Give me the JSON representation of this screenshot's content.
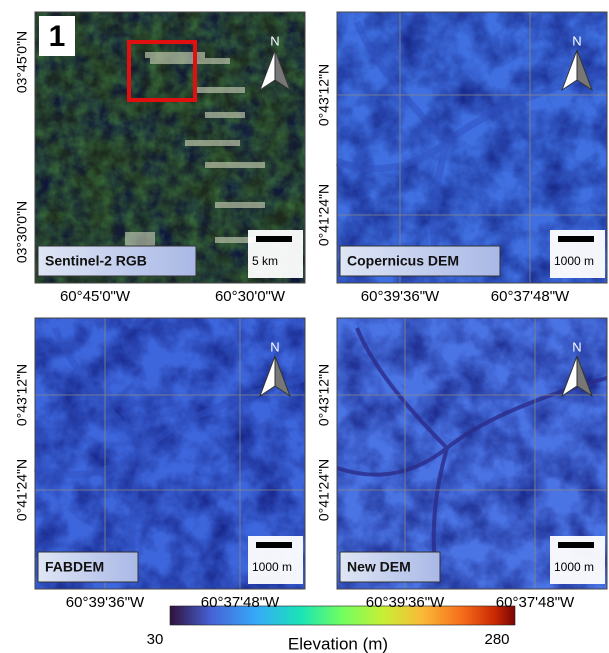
{
  "panels": [
    {
      "badge": "1",
      "label": "Sentinel-2 RGB",
      "north": "N",
      "scale_label": "5 km",
      "lat_labels": [
        "03°45'0\"N",
        "03°30'0\"N"
      ],
      "lon_labels": [
        "60°45'0\"W",
        "60°30'0\"W"
      ]
    },
    {
      "label": "Copernicus DEM",
      "north": "N",
      "scale_label": "1000 m",
      "lat_labels": [
        "0°43'12\"N",
        "0°41'24\"N"
      ],
      "lon_labels": [
        "60°39'36\"W",
        "60°37'48\"W"
      ]
    },
    {
      "label": "FABDEM",
      "north": "N",
      "scale_label": "1000 m",
      "lat_labels": [
        "0°43'12\"N",
        "0°41'24\"N"
      ],
      "lon_labels": [
        "60°39'36\"W",
        "60°37'48\"W"
      ]
    },
    {
      "label": "New DEM",
      "north": "N",
      "scale_label": "1000 m",
      "lat_labels": [
        "0°43'12\"N",
        "0°41'24\"N"
      ],
      "lon_labels": [
        "60°39'36\"W",
        "60°37'48\"W"
      ]
    }
  ],
  "colorbar": {
    "title": "Elevation (m)",
    "min": 30,
    "max": 280
  }
}
